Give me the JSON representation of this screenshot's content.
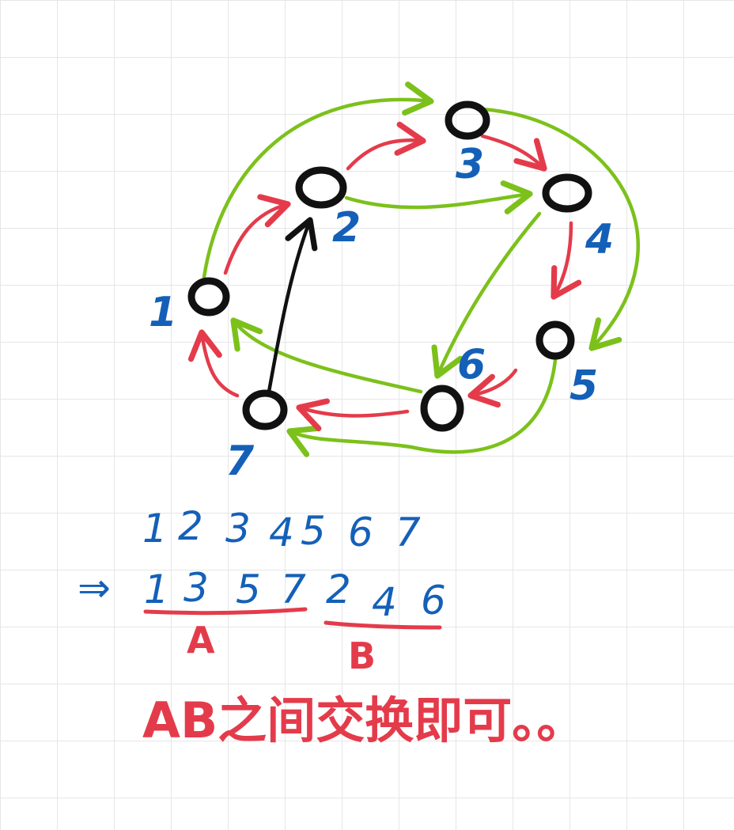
{
  "colors": {
    "node": "#111111",
    "label": "#1460b8",
    "red": "#e43b4b",
    "green": "#7cc11b",
    "black": "#111111"
  },
  "nodes": [
    {
      "id": "1",
      "label": "1"
    },
    {
      "id": "2",
      "label": "2"
    },
    {
      "id": "3",
      "label": "3"
    },
    {
      "id": "4",
      "label": "4"
    },
    {
      "id": "5",
      "label": "5"
    },
    {
      "id": "6",
      "label": "6"
    },
    {
      "id": "7",
      "label": "7"
    }
  ],
  "edges": [
    {
      "from": "1",
      "to": "2",
      "color": "red"
    },
    {
      "from": "2",
      "to": "3",
      "color": "red"
    },
    {
      "from": "3",
      "to": "4",
      "color": "red"
    },
    {
      "from": "4",
      "to": "5",
      "color": "red"
    },
    {
      "from": "5",
      "to": "6",
      "color": "red"
    },
    {
      "from": "6",
      "to": "7",
      "color": "red"
    },
    {
      "from": "7",
      "to": "1",
      "color": "red"
    },
    {
      "from": "1",
      "to": "3",
      "color": "green"
    },
    {
      "from": "3",
      "to": "5",
      "color": "green"
    },
    {
      "from": "5",
      "to": "7",
      "color": "green"
    },
    {
      "from": "2",
      "to": "4",
      "color": "green"
    },
    {
      "from": "4",
      "to": "6",
      "color": "green"
    },
    {
      "from": "6",
      "to": "1",
      "color": "green"
    },
    {
      "from": "7",
      "to": "2",
      "color": "black"
    }
  ],
  "notes": {
    "sequence": [
      "1",
      "2",
      "3",
      "4",
      "5",
      "6",
      "7"
    ],
    "arrow": "⇒",
    "group_a": [
      "1",
      "3",
      "5",
      "7"
    ],
    "group_b": [
      "2",
      "4",
      "6"
    ],
    "group_a_name": "A",
    "group_b_name": "B",
    "conclusion": "AB之间交换即可。。"
  }
}
